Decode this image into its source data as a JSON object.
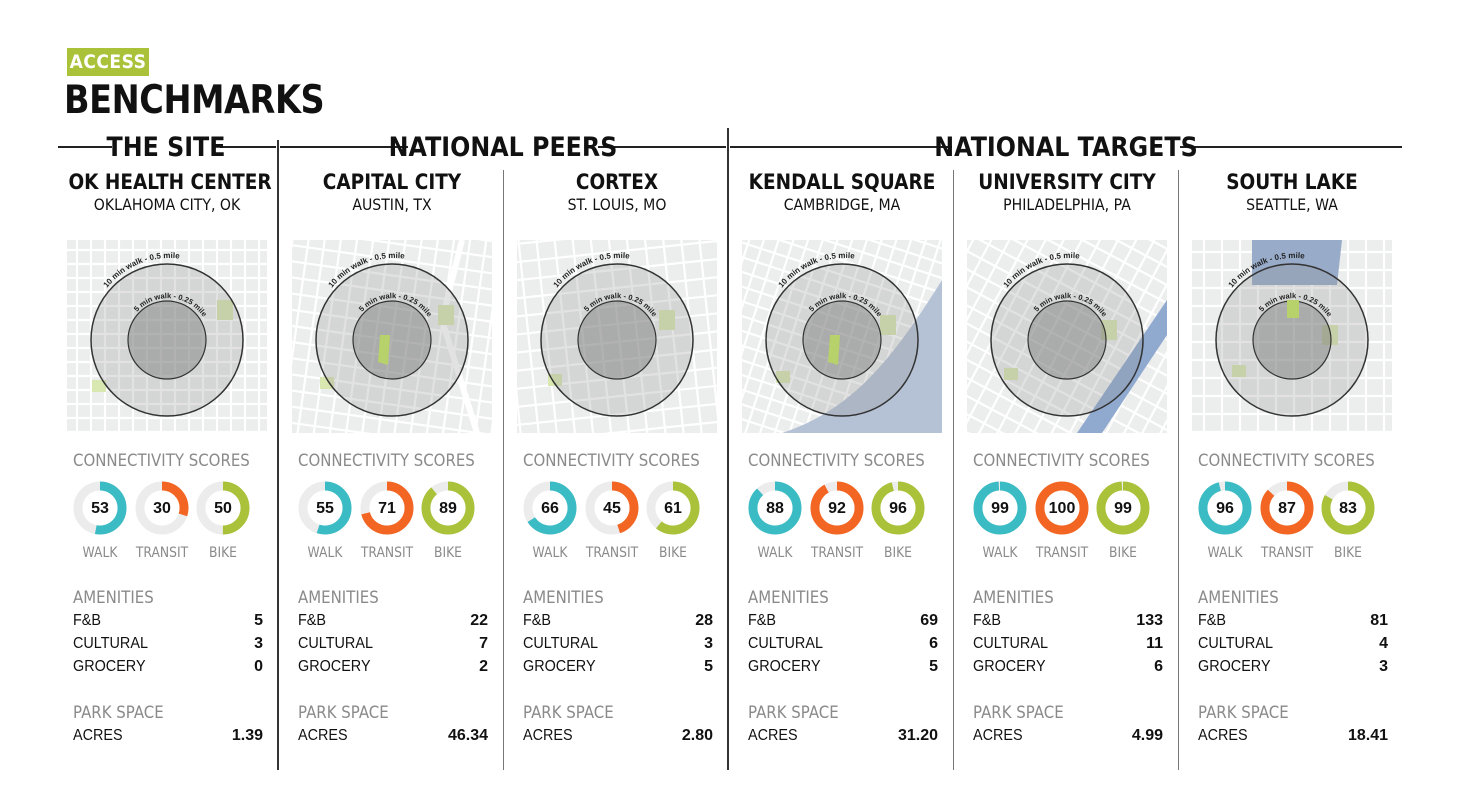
{
  "tag": "ACCESS",
  "title": "BENCHMARKS",
  "groups": {
    "site": "THE SITE",
    "peers": "NATIONAL PEERS",
    "targets": "NATIONAL TARGETS"
  },
  "labels": {
    "connectivity": "CONNECTIVITY SCORES",
    "walk": "WALK",
    "transit": "TRANSIT",
    "bike": "BIKE",
    "amenities": "AMENITIES",
    "fb": "F&B",
    "cultural": "CULTURAL",
    "grocery": "GROCERY",
    "park_space": "PARK SPACE",
    "acres": "ACRES",
    "ring_10": "10 min walk - 0.5 mile",
    "ring_5": "5 min walk - 0.25 mile"
  },
  "colors": {
    "walk": "#3bbcc4",
    "transit": "#f26522",
    "bike": "#a9c23a",
    "accent": "#a9c23a"
  },
  "columns": [
    {
      "name": "OK HEALTH CENTER",
      "location": "OKLAHOMA CITY, OK",
      "walk": 53,
      "transit": 30,
      "bike": 50,
      "fb": 5,
      "cultural": 3,
      "grocery": 0,
      "acres": "1.39"
    },
    {
      "name": "CAPITAL CITY",
      "location": "AUSTIN, TX",
      "walk": 55,
      "transit": 71,
      "bike": 89,
      "fb": 22,
      "cultural": 7,
      "grocery": 2,
      "acres": "46.34"
    },
    {
      "name": "CORTEX",
      "location": "ST. LOUIS, MO",
      "walk": 66,
      "transit": 45,
      "bike": 61,
      "fb": 28,
      "cultural": 3,
      "grocery": 5,
      "acres": "2.80"
    },
    {
      "name": "KENDALL SQUARE",
      "location": "CAMBRIDGE, MA",
      "walk": 88,
      "transit": 92,
      "bike": 96,
      "fb": 69,
      "cultural": 6,
      "grocery": 5,
      "acres": "31.20"
    },
    {
      "name": "UNIVERSITY CITY",
      "location": "PHILADELPHIA, PA",
      "walk": 99,
      "transit": 100,
      "bike": 99,
      "fb": 133,
      "cultural": 11,
      "grocery": 6,
      "acres": "4.99"
    },
    {
      "name": "SOUTH LAKE",
      "location": "SEATTLE, WA",
      "walk": 96,
      "transit": 87,
      "bike": 83,
      "fb": 81,
      "cultural": 4,
      "grocery": 3,
      "acres": "18.41"
    }
  ]
}
